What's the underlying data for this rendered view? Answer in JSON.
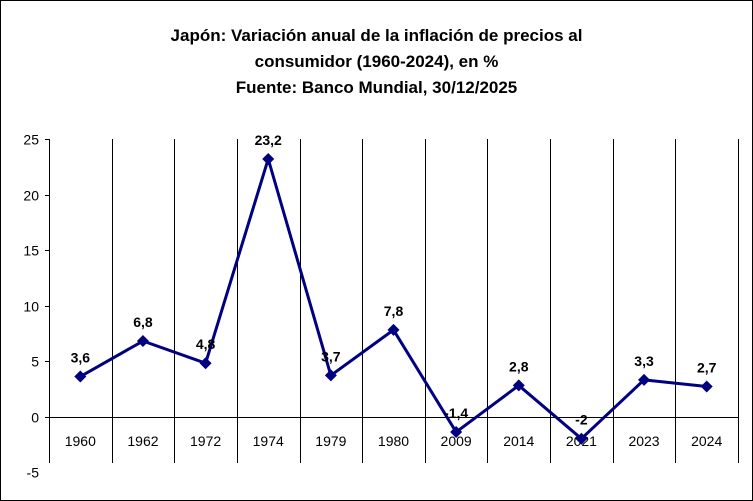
{
  "chart_data": {
    "type": "line",
    "title": [
      "Japón: Variación anual de la inflación de precios al",
      "consumidor (1960-2024), en %",
      "Fuente: Banco Mundial, 30/12/2025"
    ],
    "categories": [
      "1960",
      "1962",
      "1972",
      "1974",
      "1979",
      "1980",
      "2009",
      "2014",
      "2021",
      "2023",
      "2024"
    ],
    "values": [
      3.6,
      6.8,
      4.8,
      23.2,
      3.7,
      7.8,
      -1.4,
      2.8,
      -2,
      3.3,
      2.7
    ],
    "data_labels": [
      "3,6",
      "6,8",
      "4,8",
      "23,2",
      "3,7",
      "7,8",
      "-1,4",
      "2,8",
      "-2",
      "3,3",
      "2,7"
    ],
    "ylim": [
      -5,
      25
    ],
    "yticks": [
      -5,
      0,
      5,
      10,
      15,
      20,
      25
    ],
    "grid": "vertical",
    "legend": "none",
    "xlabel": "",
    "ylabel": "",
    "series_color": "#000080"
  }
}
